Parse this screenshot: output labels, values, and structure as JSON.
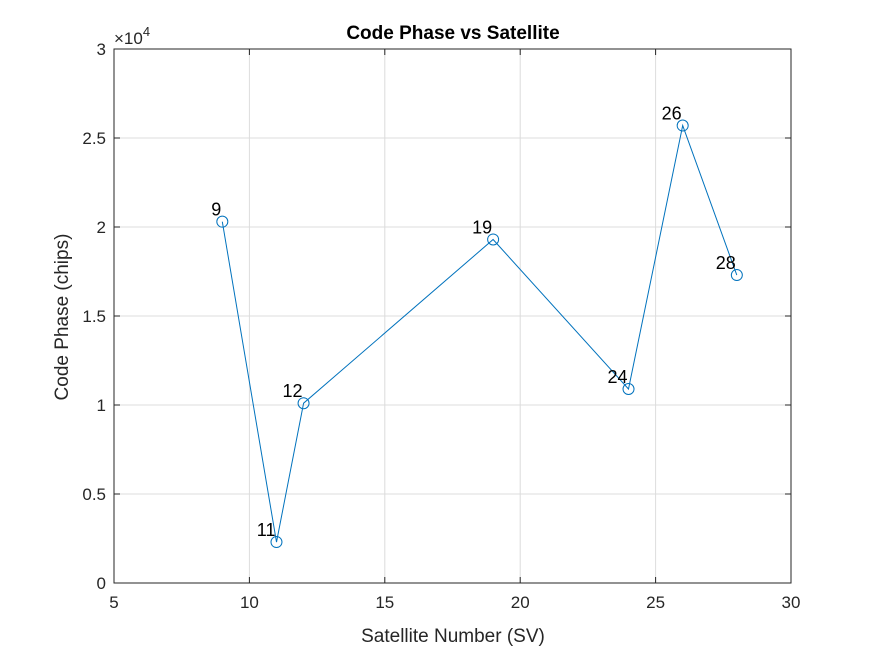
{
  "chart_data": {
    "type": "line",
    "title": "Code Phase vs Satellite",
    "xlabel": "Satellite Number (SV)",
    "ylabel": "Code Phase (chips)",
    "y_exponent_label": "×10",
    "y_exponent": "4",
    "xlim": [
      5,
      30
    ],
    "ylim": [
      0,
      30000
    ],
    "x_ticks": [
      5,
      10,
      15,
      20,
      25,
      30
    ],
    "x_tick_labels": [
      "5",
      "10",
      "15",
      "20",
      "25",
      "30"
    ],
    "y_ticks": [
      0,
      5000,
      10000,
      15000,
      20000,
      25000,
      30000
    ],
    "y_tick_labels": [
      "0",
      "0.5",
      "1",
      "1.5",
      "2",
      "2.5",
      "3"
    ],
    "grid": true,
    "series": [
      {
        "x": [
          9,
          11,
          12,
          19,
          24,
          26,
          28
        ],
        "y": [
          20300,
          2300,
          10100,
          19300,
          10900,
          25700,
          17300
        ],
        "marker": "circle",
        "color": "#0072BD"
      }
    ],
    "point_labels": [
      "9",
      "11",
      "12",
      "19",
      "24",
      "26",
      "28"
    ]
  }
}
